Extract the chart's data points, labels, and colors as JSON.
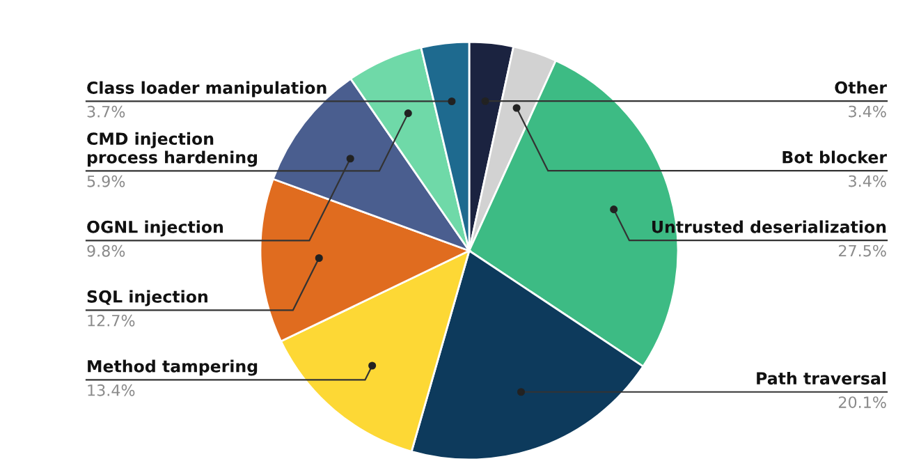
{
  "chart_data": {
    "type": "pie",
    "categories": [
      "Other",
      "Bot blocker",
      "Untrusted deserialization",
      "Path traversal",
      "Method tampering",
      "SQL injection",
      "OGNL injection",
      "CMD injection\nprocess hardening",
      "Class loader manipulation"
    ],
    "values": [
      3.4,
      3.4,
      27.5,
      20.1,
      13.4,
      12.7,
      9.8,
      5.9,
      3.7
    ],
    "value_labels": [
      "3.4%",
      "3.4%",
      "27.5%",
      "20.1%",
      "13.4%",
      "12.7%",
      "9.8%",
      "5.9%",
      "3.7%"
    ],
    "colors": [
      "#1b2340",
      "#d2d2d2",
      "#3dbb84",
      "#0d3a5c",
      "#fdd835",
      "#e06c1f",
      "#4a5e8f",
      "#6fd9a8",
      "#1e6a8f"
    ],
    "legend": false
  }
}
